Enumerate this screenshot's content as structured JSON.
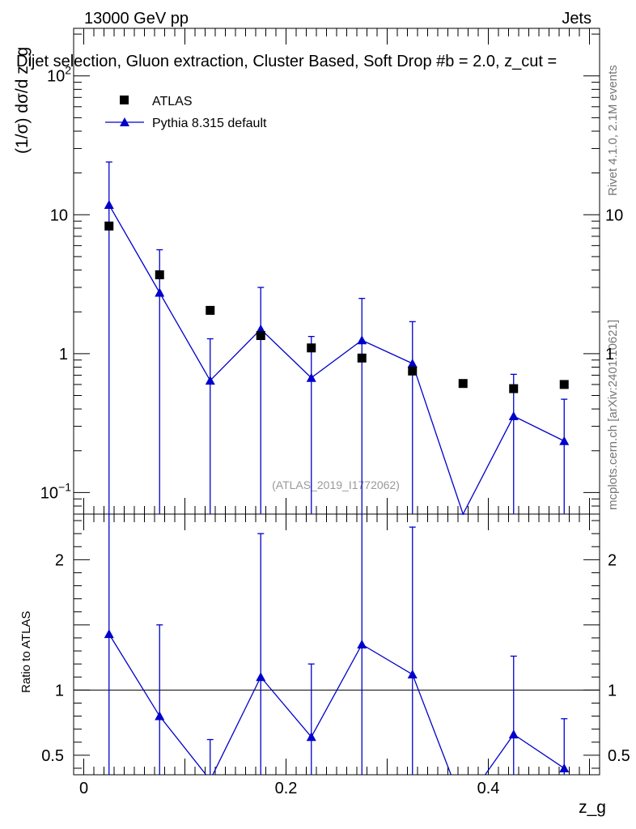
{
  "header": {
    "energy_label": "13000 GeV pp",
    "category_label": "Jets",
    "selection_label": "Dijet selection, Gluon extraction, Cluster Based, Soft Drop #b = 2.0, z_cut ="
  },
  "side_labels": {
    "rivet": "Rivet 4.1.0,  2.1M events",
    "mcplots": "mcplots.cern.ch [arXiv:2401.10621]"
  },
  "watermark": "(ATLAS_2019_I1772062)",
  "chart_data": [
    {
      "type": "scatter",
      "yscale": "log",
      "ylabel": "(1/σ) dσ/d z_g",
      "xlim": [
        -0.01,
        0.51
      ],
      "ylim": [
        0.07,
        220
      ],
      "x_ticks": [
        0,
        0.2,
        0.4
      ],
      "y_tick_labels": [
        {
          "value": 0.1,
          "label": "10",
          "sup": "−1"
        },
        {
          "value": 1,
          "label": "1",
          "sup": ""
        },
        {
          "value": 10,
          "label": "10",
          "sup": ""
        },
        {
          "value": 100,
          "label": "10",
          "sup": "2"
        }
      ],
      "legend": {
        "placement": "top-left"
      },
      "series": [
        {
          "name": "ATLAS",
          "marker": "square",
          "color": "#000000",
          "x": [
            0.025,
            0.075,
            0.125,
            0.175,
            0.225,
            0.275,
            0.325,
            0.375,
            0.425,
            0.475
          ],
          "y": [
            8.3,
            3.7,
            2.05,
            1.35,
            1.1,
            0.93,
            0.75,
            0.61,
            0.56,
            0.6
          ]
        },
        {
          "name": "Pythia 8.315 default",
          "marker": "triangle",
          "color": "#0000cc",
          "x": [
            0.025,
            0.075,
            0.125,
            0.175,
            0.225,
            0.275,
            0.325,
            0.375,
            0.425,
            0.475
          ],
          "y": [
            11.8,
            2.75,
            0.64,
            1.5,
            0.67,
            1.25,
            0.85,
            0.068,
            0.355,
            0.235
          ],
          "y_err_up": [
            24,
            5.6,
            1.28,
            3.0,
            1.33,
            2.5,
            1.7,
            0.068,
            0.71,
            0.47
          ],
          "y_err_down": [
            0.07,
            0.07,
            0.07,
            0.07,
            0.07,
            0.07,
            0.07,
            0.07,
            0.07,
            0.07
          ]
        }
      ]
    },
    {
      "type": "line",
      "ylabel": "Ratio to ATLAS",
      "xlabel": "z_g",
      "xlim": [
        -0.01,
        0.51
      ],
      "ylim": [
        0.35,
        2.35
      ],
      "reference_line": 1,
      "x_ticks": [
        0,
        0.2,
        0.4
      ],
      "y_tick_labels": [
        {
          "value": 0.5,
          "label": "0.5"
        },
        {
          "value": 1,
          "label": "1"
        },
        {
          "value": 2,
          "label": "2"
        }
      ],
      "series": [
        {
          "name": "Pythia 8.315 default",
          "marker": "triangle",
          "color": "#0000cc",
          "x": [
            0.025,
            0.075,
            0.125,
            0.175,
            0.225,
            0.275,
            0.325,
            0.375,
            0.425,
            0.475
          ],
          "y": [
            1.43,
            0.8,
            0.31,
            1.1,
            0.64,
            1.35,
            1.12,
            0.11,
            0.66,
            0.4
          ],
          "y_err_up": [
            2.5,
            1.5,
            0.62,
            2.2,
            1.2,
            2.7,
            2.25,
            0.22,
            1.26,
            0.78
          ],
          "y_err_down": [
            0.35,
            0.35,
            0.35,
            0.35,
            0.35,
            0.35,
            0.35,
            0.35,
            0.35,
            0.35
          ]
        }
      ]
    }
  ]
}
